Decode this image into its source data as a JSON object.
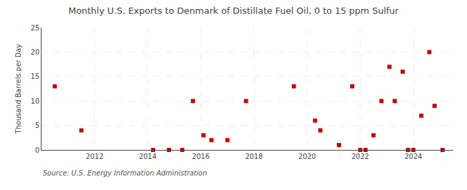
{
  "chart_data": {
    "type": "scatter",
    "title": "Monthly U.S. Exports to Denmark of Distillate Fuel Oil, 0 to 15 ppm Sulfur",
    "ylabel": "Thousand Barrels per Day",
    "annotations": [
      "Source: U.S. Energy Information Administration"
    ],
    "color": "#cc0000",
    "marker": "square",
    "grid": true,
    "xlim": [
      2010.0,
      2025.5
    ],
    "ylim": [
      0,
      25
    ],
    "xticks": [
      2012,
      2014,
      2016,
      2018,
      2020,
      2022,
      2024
    ],
    "yticks": [
      0,
      5,
      10,
      15,
      20,
      25
    ],
    "x": [
      2010.5,
      2011.5,
      2014.2,
      2014.8,
      2015.3,
      2015.7,
      2016.1,
      2016.4,
      2017.0,
      2017.7,
      2019.5,
      2020.3,
      2020.5,
      2021.2,
      2021.7,
      2022.0,
      2022.2,
      2022.5,
      2022.8,
      2023.1,
      2023.3,
      2023.6,
      2023.8,
      2024.0,
      2024.3,
      2024.6,
      2024.8,
      2025.1
    ],
    "values": [
      13,
      4,
      0,
      0,
      0,
      10,
      3,
      2,
      2,
      10,
      13,
      6,
      4,
      1,
      13,
      0,
      0,
      3,
      10,
      17,
      10,
      16,
      0,
      0,
      7,
      20,
      9,
      0
    ]
  }
}
